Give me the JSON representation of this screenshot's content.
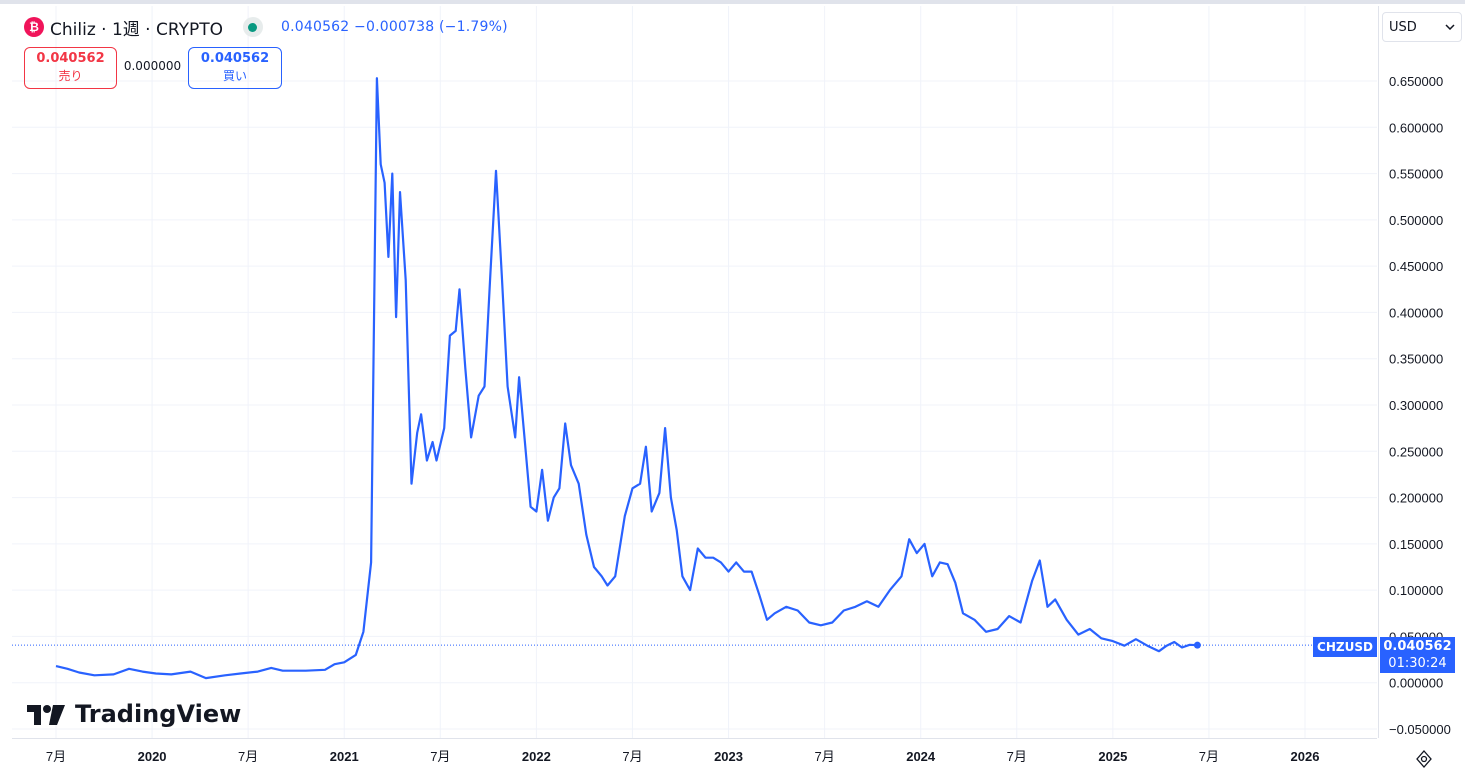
{
  "header": {
    "logo_glyph": "₿",
    "symbol_line": "Chiliz · 1週 · CRYPTO",
    "quote": "0.040562 −0.000738 (−1.79%)",
    "status_color": "#089981"
  },
  "trade": {
    "sell_price": "0.040562",
    "sell_label": "売り",
    "spread": "0.000000",
    "buy_price": "0.040562",
    "buy_label": "買い"
  },
  "currency": {
    "selected": "USD"
  },
  "brand": {
    "name": "TradingView"
  },
  "last_price": {
    "symbol": "CHZUSD",
    "value": "0.040562",
    "countdown": "01:30:24"
  },
  "icons": {
    "settings": "settings-icon",
    "dropdown": "chevron-down-icon"
  },
  "colors": {
    "line": "#2962ff",
    "sell": "#f23645",
    "buy": "#2962ff"
  },
  "chart_data": {
    "type": "line",
    "title": "Chiliz · 1週 · CRYPTO",
    "y_ticks": [
      "0.650000",
      "0.600000",
      "0.550000",
      "0.500000",
      "0.450000",
      "0.400000",
      "0.350000",
      "0.300000",
      "0.250000",
      "0.200000",
      "0.150000",
      "0.100000",
      "0.050000",
      "0.000000",
      "−0.050000"
    ],
    "x_ticks": [
      "7月",
      "2020",
      "7月",
      "2021",
      "7月",
      "2022",
      "7月",
      "2023",
      "7月",
      "2024",
      "7月",
      "2025",
      "7月",
      "2026"
    ],
    "ylim": [
      -0.05,
      0.65
    ],
    "grid": true,
    "series": [
      {
        "values": [
          [
            2019.5,
            0.018
          ],
          [
            2019.56,
            0.015
          ],
          [
            2019.62,
            0.011
          ],
          [
            2019.7,
            0.008
          ],
          [
            2019.8,
            0.009
          ],
          [
            2019.88,
            0.015
          ],
          [
            2019.95,
            0.012
          ],
          [
            2020.02,
            0.01
          ],
          [
            2020.1,
            0.009
          ],
          [
            2020.2,
            0.012
          ],
          [
            2020.28,
            0.005
          ],
          [
            2020.38,
            0.008
          ],
          [
            2020.46,
            0.01
          ],
          [
            2020.55,
            0.012
          ],
          [
            2020.62,
            0.016
          ],
          [
            2020.68,
            0.013
          ],
          [
            2020.8,
            0.013
          ],
          [
            2020.9,
            0.014
          ],
          [
            2020.95,
            0.02
          ],
          [
            2021.0,
            0.022
          ],
          [
            2021.06,
            0.03
          ],
          [
            2021.1,
            0.055
          ],
          [
            2021.14,
            0.13
          ],
          [
            2021.17,
            0.653
          ],
          [
            2021.19,
            0.56
          ],
          [
            2021.21,
            0.54
          ],
          [
            2021.23,
            0.46
          ],
          [
            2021.25,
            0.55
          ],
          [
            2021.27,
            0.395
          ],
          [
            2021.29,
            0.53
          ],
          [
            2021.32,
            0.435
          ],
          [
            2021.35,
            0.215
          ],
          [
            2021.38,
            0.27
          ],
          [
            2021.4,
            0.29
          ],
          [
            2021.43,
            0.24
          ],
          [
            2021.46,
            0.26
          ],
          [
            2021.48,
            0.24
          ],
          [
            2021.52,
            0.275
          ],
          [
            2021.55,
            0.375
          ],
          [
            2021.58,
            0.38
          ],
          [
            2021.6,
            0.425
          ],
          [
            2021.63,
            0.34
          ],
          [
            2021.66,
            0.265
          ],
          [
            2021.7,
            0.31
          ],
          [
            2021.73,
            0.32
          ],
          [
            2021.76,
            0.44
          ],
          [
            2021.79,
            0.553
          ],
          [
            2021.82,
            0.44
          ],
          [
            2021.85,
            0.32
          ],
          [
            2021.89,
            0.265
          ],
          [
            2021.91,
            0.33
          ],
          [
            2021.94,
            0.26
          ],
          [
            2021.97,
            0.19
          ],
          [
            2022.0,
            0.185
          ],
          [
            2022.03,
            0.23
          ],
          [
            2022.06,
            0.175
          ],
          [
            2022.09,
            0.2
          ],
          [
            2022.12,
            0.21
          ],
          [
            2022.15,
            0.28
          ],
          [
            2022.18,
            0.235
          ],
          [
            2022.22,
            0.215
          ],
          [
            2022.26,
            0.16
          ],
          [
            2022.3,
            0.125
          ],
          [
            2022.34,
            0.115
          ],
          [
            2022.37,
            0.105
          ],
          [
            2022.41,
            0.115
          ],
          [
            2022.46,
            0.18
          ],
          [
            2022.5,
            0.21
          ],
          [
            2022.54,
            0.215
          ],
          [
            2022.57,
            0.255
          ],
          [
            2022.6,
            0.185
          ],
          [
            2022.64,
            0.205
          ],
          [
            2022.67,
            0.275
          ],
          [
            2022.7,
            0.2
          ],
          [
            2022.73,
            0.165
          ],
          [
            2022.76,
            0.115
          ],
          [
            2022.8,
            0.1
          ],
          [
            2022.84,
            0.145
          ],
          [
            2022.88,
            0.135
          ],
          [
            2022.92,
            0.135
          ],
          [
            2022.96,
            0.13
          ],
          [
            2023.0,
            0.12
          ],
          [
            2023.04,
            0.13
          ],
          [
            2023.08,
            0.12
          ],
          [
            2023.12,
            0.12
          ],
          [
            2023.16,
            0.095
          ],
          [
            2023.2,
            0.068
          ],
          [
            2023.24,
            0.075
          ],
          [
            2023.3,
            0.082
          ],
          [
            2023.36,
            0.078
          ],
          [
            2023.42,
            0.065
          ],
          [
            2023.48,
            0.062
          ],
          [
            2023.54,
            0.065
          ],
          [
            2023.6,
            0.078
          ],
          [
            2023.66,
            0.082
          ],
          [
            2023.72,
            0.088
          ],
          [
            2023.78,
            0.082
          ],
          [
            2023.84,
            0.1
          ],
          [
            2023.9,
            0.115
          ],
          [
            2023.94,
            0.155
          ],
          [
            2023.98,
            0.14
          ],
          [
            2024.02,
            0.15
          ],
          [
            2024.06,
            0.115
          ],
          [
            2024.1,
            0.13
          ],
          [
            2024.14,
            0.128
          ],
          [
            2024.18,
            0.108
          ],
          [
            2024.22,
            0.075
          ],
          [
            2024.28,
            0.068
          ],
          [
            2024.34,
            0.055
          ],
          [
            2024.4,
            0.058
          ],
          [
            2024.46,
            0.072
          ],
          [
            2024.52,
            0.065
          ],
          [
            2024.58,
            0.11
          ],
          [
            2024.62,
            0.132
          ],
          [
            2024.66,
            0.082
          ],
          [
            2024.7,
            0.09
          ],
          [
            2024.76,
            0.068
          ],
          [
            2024.82,
            0.052
          ],
          [
            2024.88,
            0.058
          ],
          [
            2024.94,
            0.048
          ],
          [
            2025.0,
            0.045
          ],
          [
            2025.06,
            0.04
          ],
          [
            2025.12,
            0.047
          ],
          [
            2025.18,
            0.04
          ],
          [
            2025.24,
            0.034
          ],
          [
            2025.28,
            0.04
          ],
          [
            2025.32,
            0.044
          ],
          [
            2025.36,
            0.038
          ],
          [
            2025.4,
            0.041
          ],
          [
            2025.44,
            0.040562
          ]
        ]
      }
    ]
  }
}
